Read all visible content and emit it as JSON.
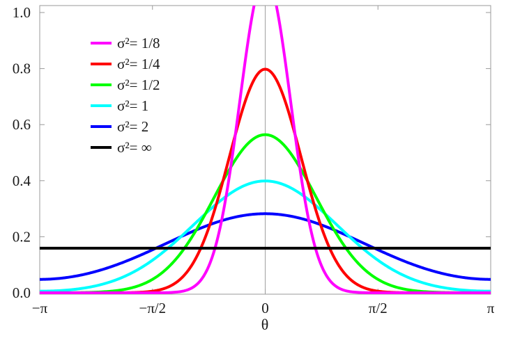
{
  "chart_data": {
    "type": "line",
    "xlabel": "θ",
    "ylabel": "",
    "xlim": [
      -3.14159265,
      3.14159265
    ],
    "ylim": [
      0,
      1
    ],
    "x_ticks": [
      {
        "value": -3.14159265,
        "label": "−π"
      },
      {
        "value": -1.5707963,
        "label": "−π/2"
      },
      {
        "value": 0,
        "label": "0"
      },
      {
        "value": 1.5707963,
        "label": "π/2"
      },
      {
        "value": 3.14159265,
        "label": "π"
      }
    ],
    "y_ticks": [
      {
        "value": 0,
        "label": "0.0"
      },
      {
        "value": 0.2,
        "label": "0.2"
      },
      {
        "value": 0.4,
        "label": "0.4"
      },
      {
        "value": 0.6,
        "label": "0.6"
      },
      {
        "value": 0.8,
        "label": "0.8"
      },
      {
        "value": 1.0,
        "label": "1.0"
      }
    ],
    "grid": false,
    "legend_position": "top-left",
    "series": [
      {
        "name": "σ²= 1/8",
        "sigma2": 0.125,
        "color": "#ff00ff",
        "x": [
          -3.1416,
          -1.5708,
          -1.0,
          -0.8,
          -0.6,
          -0.4,
          -0.3,
          -0.25,
          -0.2,
          0,
          0.2,
          0.25,
          0.3,
          0.4,
          0.6,
          0.8,
          1.0,
          1.5708,
          3.1416
        ],
        "y": [
          0.0,
          0.0,
          0.02,
          0.1,
          0.27,
          0.59,
          0.79,
          0.88,
          0.96,
          1.13,
          0.96,
          0.88,
          0.79,
          0.59,
          0.27,
          0.1,
          0.02,
          0.0,
          0.0
        ]
      },
      {
        "name": "σ²= 1/4",
        "sigma2": 0.25,
        "color": "#ff0000",
        "x": [
          -3.1416,
          -1.5708,
          -1.0,
          -0.5,
          0,
          0.5,
          1.0,
          1.5708,
          3.1416
        ],
        "y": [
          0.0,
          0.006,
          0.108,
          0.484,
          0.798,
          0.484,
          0.108,
          0.006,
          0.0
        ]
      },
      {
        "name": "σ²= 1/2",
        "sigma2": 0.5,
        "color": "#00ff00",
        "x": [
          -3.1416,
          -1.5708,
          -1.0,
          -0.5,
          0,
          0.5,
          1.0,
          1.5708,
          3.1416
        ],
        "y": [
          0.0,
          0.048,
          0.208,
          0.439,
          0.564,
          0.439,
          0.208,
          0.048,
          0.0
        ]
      },
      {
        "name": "σ²= 1",
        "sigma2": 1,
        "color": "#00ffff",
        "x": [
          -3.1416,
          -1.5708,
          -1.0,
          -0.5,
          0,
          0.5,
          1.0,
          1.5708,
          3.1416
        ],
        "y": [
          0.007,
          0.116,
          0.242,
          0.352,
          0.399,
          0.352,
          0.242,
          0.116,
          0.007
        ]
      },
      {
        "name": "σ²= 2",
        "sigma2": 2,
        "color": "#0000ff",
        "x": [
          -3.1416,
          -1.5708,
          -1.0,
          0,
          1.0,
          1.5708,
          3.1416
        ],
        "y": [
          0.048,
          0.158,
          0.219,
          0.282,
          0.219,
          0.158,
          0.048
        ]
      },
      {
        "name": "σ²= ∞",
        "sigma2": "inf",
        "color": "#000000",
        "x": [
          -3.1416,
          3.1416
        ],
        "y": [
          0.159,
          0.159
        ]
      }
    ]
  }
}
